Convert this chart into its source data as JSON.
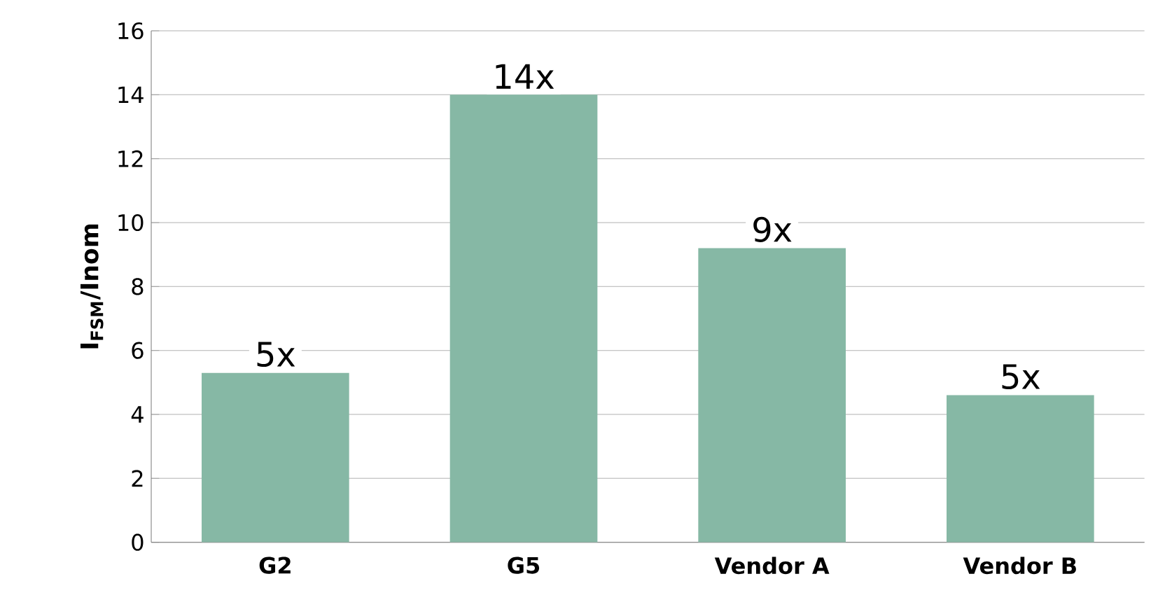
{
  "chart_data": {
    "type": "bar",
    "ylabel": "I$_{FSM}$/Inom",
    "categories": [
      "G2",
      "G5",
      "Vendor A",
      "Vendor B"
    ],
    "values": [
      5.3,
      14.0,
      9.2,
      4.6
    ],
    "color": "#86b8a5",
    "value_labels": [
      "5x",
      "14x",
      "9x",
      "5x"
    ],
    "ylim": [
      0,
      16
    ],
    "yticks": [
      0,
      2,
      4,
      6,
      8,
      10,
      12,
      14,
      16
    ],
    "grid": "y"
  }
}
